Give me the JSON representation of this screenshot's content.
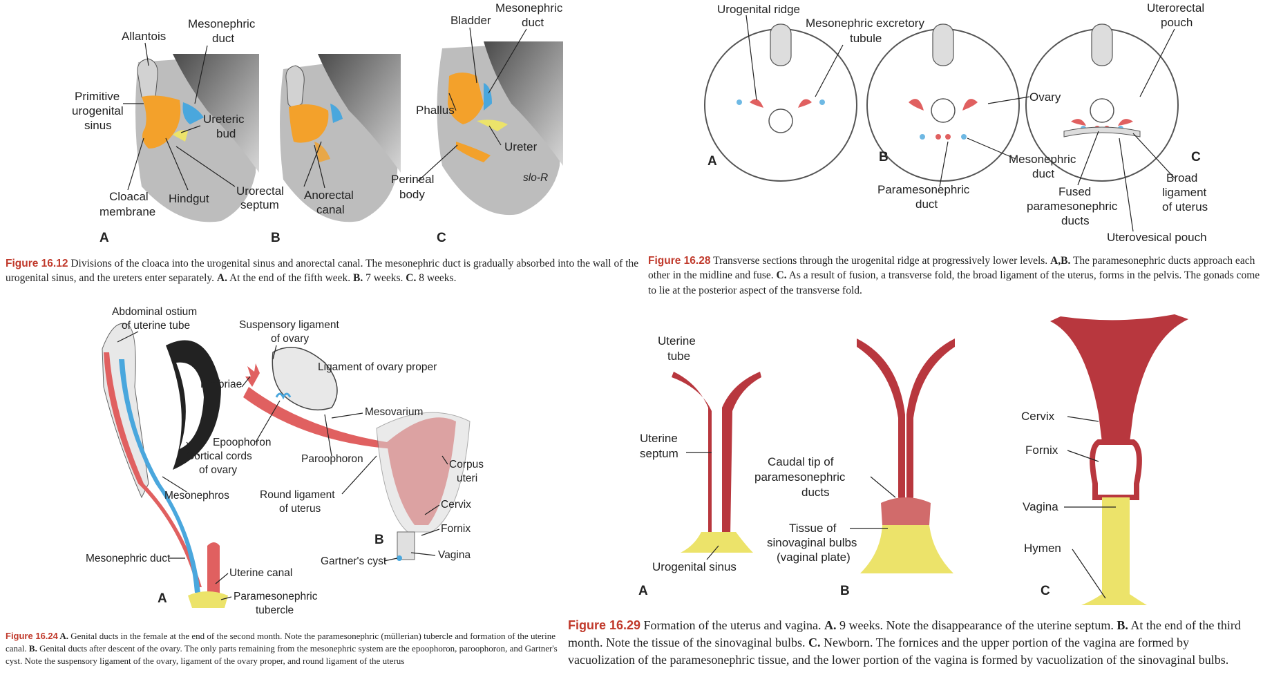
{
  "colors": {
    "red": "#e06060",
    "dark_red": "#b8373e",
    "orange": "#f3a12b",
    "yellow": "#ece36a",
    "blue": "#4aa7dd",
    "gray": "#bdbdbd",
    "dark_gray": "#6e6e6e",
    "caption_red": "#c0392b"
  },
  "fig1612": {
    "labels": {
      "allantois": "Allantois",
      "mesonephric_duct_1": "Mesonephric",
      "mesonephric_duct_2": "duct",
      "prim_1": "Primitive",
      "prim_2": "urogenital",
      "prim_3": "sinus",
      "ureteric_1": "Ureteric",
      "ureteric_2": "bud",
      "cloacal_1": "Cloacal",
      "cloacal_2": "membrane",
      "hindgut": "Hindgut",
      "urorectal_1": "Urorectal",
      "urorectal_2": "septum",
      "anorectal_1": "Anorectal",
      "anorectal_2": "canal",
      "bladder": "Bladder",
      "meso_c_1": "Mesonephric",
      "meso_c_2": "duct",
      "phallus": "Phallus",
      "ureter": "Ureter",
      "perineal_1": "Perineal",
      "perineal_2": "body",
      "signature": "slo-R"
    },
    "panels": [
      "A",
      "B",
      "C"
    ],
    "caption": {
      "fig": "Figure 16.12",
      "text": " Divisions of the cloaca into the urogenital sinus and anorectal canal. The mesonephric duct is gradually absorbed into the wall of the urogenital sinus, and the ureters enter separately. ",
      "a": "A.",
      "a_text": " At the end of the fifth week. ",
      "b": "B.",
      "b_text": " 7 weeks. ",
      "c": "C.",
      "c_text": " 8 weeks."
    }
  },
  "fig1628": {
    "labels": {
      "urogenital_ridge": "Urogenital ridge",
      "meso_excretory_1": "Mesonephric excretory",
      "meso_excretory_2": "tubule",
      "uterorectal_1": "Uterorectal",
      "uterorectal_2": "pouch",
      "ovary": "Ovary",
      "meso_duct_1": "Mesonephric",
      "meso_duct_2": "duct",
      "parameso_1": "Paramesonephric",
      "parameso_2": "duct",
      "fused_1": "Fused",
      "fused_2": "paramesonephric",
      "fused_3": "ducts",
      "broad_1": "Broad",
      "broad_2": "ligament",
      "broad_3": "of uterus",
      "uterovesical": "Uterovesical pouch"
    },
    "panels": [
      "A",
      "B",
      "C"
    ],
    "caption": {
      "fig": "Figure 16.28",
      "text": " Transverse sections through the urogenital ridge at progressively lower levels. ",
      "ab": "A,B.",
      "ab_text": " The paramesonephric ducts approach each other in the midline and fuse. ",
      "c": "C.",
      "c_text": " As a result of fusion, a transverse fold, the broad ligament of the uterus, forms in the pelvis. The gonads come to lie at the posterior aspect of the transverse fold."
    }
  },
  "fig1624": {
    "labels": {
      "abd_ostium_1": "Abdominal ostium",
      "abd_ostium_2": "of uterine tube",
      "susp_1": "Suspensory ligament",
      "susp_2": "of ovary",
      "lig_ovary": "Ligament of ovary proper",
      "fimbriae": "Fimbriae",
      "mesovarium": "Mesovarium",
      "epoophoron": "Epoophoron",
      "cortical_1": "Cortical cords",
      "cortical_2": "of ovary",
      "paroophoron": "Paroophoron",
      "corpus_1": "Corpus",
      "corpus_2": "uteri",
      "mesonephros": "Mesonephros",
      "round_1": "Round ligament",
      "round_2": "of uterus",
      "cervix": "Cervix",
      "fornix": "Fornix",
      "gartner": "Gartner's cyst",
      "vagina": "Vagina",
      "meso_duct": "Mesonephric duct",
      "uterine_canal": "Uterine canal",
      "paramesotub_1": "Paramesonephric",
      "paramesotub_2": "tubercle"
    },
    "panels": [
      "A",
      "B"
    ],
    "caption": {
      "fig": "Figure 16.24",
      "a": " A.",
      "text": " Genital ducts in the female at the end of the second month. Note the paramesonephric (müllerian) tubercle and formation of the uterine canal. ",
      "b": "B.",
      "b_text": " Genital ducts after descent of the ovary. The only parts remaining from the mesonephric system are the epoophoron, paroophoron, and Gartner's cyst. Note the suspensory ligament of the ovary, ligament of the ovary proper, and round ligament of the uterus"
    }
  },
  "fig1629": {
    "labels": {
      "uterine_tube_1": "Uterine",
      "uterine_tube_2": "tube",
      "uterine_septum_1": "Uterine",
      "uterine_septum_2": "septum",
      "urogenital_sinus": "Urogenital sinus",
      "caudal_1": "Caudal tip of",
      "caudal_2": "paramesonephric",
      "caudal_3": "ducts",
      "tissue_1": "Tissue of",
      "tissue_2": "sinovaginal bulbs",
      "tissue_3": "(vaginal plate)",
      "cervix": "Cervix",
      "fornix": "Fornix",
      "vagina": "Vagina",
      "hymen": "Hymen"
    },
    "panels": [
      "A",
      "B",
      "C"
    ],
    "caption": {
      "fig": "Figure 16.29",
      "text": " Formation of the uterus and vagina. ",
      "a": "A.",
      "a_text": " 9 weeks. Note the disappearance of the uterine septum. ",
      "b": "B.",
      "b_text": " At the end of the third month. Note the tissue of the sinovaginal bulbs. ",
      "c": "C.",
      "c_text": " Newborn. The fornices and the upper portion of the vagina are formed by vacuolization of the paramesonephric tissue, and the lower portion of the vagina is formed by vacuolization of the sinovaginal bulbs."
    }
  }
}
